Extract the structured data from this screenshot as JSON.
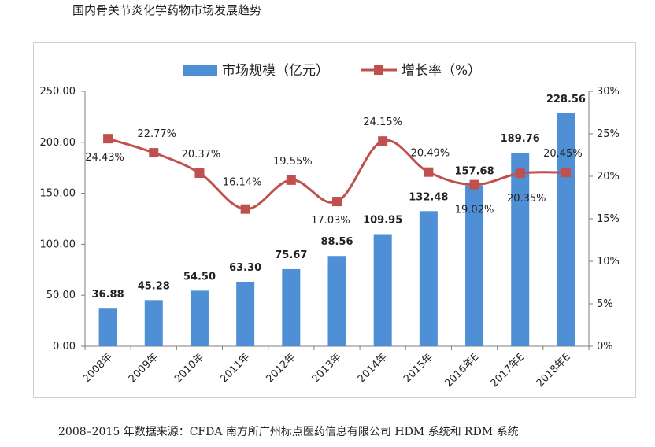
{
  "page": {
    "title": "国内骨关节炎化学药物市场发展趋势",
    "source_note": "2008–2015 年数据来源：CFDA 南方所广州标点医药信息有限公司 HDM 系统和 RDM 系统"
  },
  "chart_data": {
    "type": "bar",
    "title": "",
    "categories": [
      "2008年",
      "2009年",
      "2010年",
      "2011年",
      "2012年",
      "2013年",
      "2014年",
      "2015年",
      "2016年E",
      "2017年E",
      "2018年E"
    ],
    "series": [
      {
        "name": "市场规模（亿元）",
        "type": "bar",
        "axis": "left",
        "color": "#4f8fd6",
        "values": [
          36.88,
          45.28,
          54.5,
          63.3,
          75.67,
          88.56,
          109.95,
          132.48,
          157.68,
          189.76,
          228.56
        ],
        "labels": [
          "36.88",
          "45.28",
          "54.50",
          "63.30",
          "75.67",
          "88.56",
          "109.95",
          "132.48",
          "157.68",
          "189.76",
          "228.56"
        ]
      },
      {
        "name": "增长率（%）",
        "type": "line",
        "axis": "right",
        "color": "#c0504d",
        "values": [
          24.43,
          22.77,
          20.37,
          16.14,
          19.55,
          17.03,
          24.15,
          20.49,
          19.02,
          20.35,
          20.45
        ],
        "labels": [
          "24.43%",
          "22.77%",
          "20.37%",
          "16.14%",
          "19.55%",
          "17.03%",
          "24.15%",
          "20.49%",
          "19.02%",
          "20.35%",
          "20.45%"
        ]
      }
    ],
    "y_left": {
      "min": 0,
      "max": 250,
      "ticks": [
        "0.00",
        "50.00",
        "100.00",
        "150.00",
        "200.00",
        "250.00"
      ]
    },
    "y_right": {
      "min": 0,
      "max": 30,
      "ticks": [
        "0%",
        "5%",
        "10%",
        "15%",
        "20%",
        "25%",
        "30%"
      ]
    },
    "grid": false,
    "legend_position": "top-center"
  }
}
